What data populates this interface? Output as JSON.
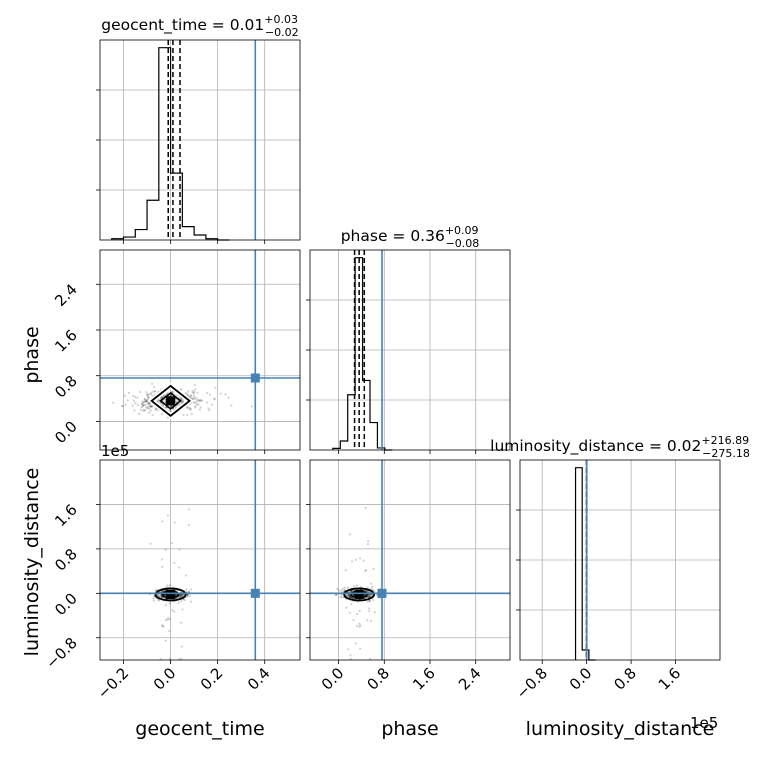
{
  "parameters": [
    "geocent_time",
    "phase",
    "luminosity_distance"
  ],
  "titles": {
    "geocent_time": {
      "prefix": "geocent_time = 0.01",
      "sup": "+0.03",
      "sub": "−0.02"
    },
    "phase": {
      "prefix": "phase = 0.36",
      "sup": "+0.09",
      "sub": "−0.08"
    },
    "luminosity_distance": {
      "prefix": "luminosity_distance = 0.02",
      "sup": "+216.89",
      "sub": "−275.18"
    }
  },
  "offset_text": "1e5",
  "colors": {
    "truth": "#4682b4",
    "grid": "#b0b0b0",
    "samples": "#000000"
  },
  "chart_data": {
    "type": "corner",
    "axes": {
      "geocent_time": {
        "range": [
          -0.3,
          0.55
        ],
        "ticks": [
          -0.2,
          0.0,
          0.2,
          0.4
        ],
        "tick_labels": [
          "−0.2",
          "0.0",
          "0.2",
          "0.4"
        ],
        "label": "geocent_time"
      },
      "phase": {
        "range": [
          -0.5,
          3.0
        ],
        "ticks": [
          0.0,
          0.8,
          1.6,
          2.4
        ],
        "tick_labels": [
          "0.0",
          "0.8",
          "1.6",
          "2.4"
        ],
        "label": "phase"
      },
      "luminosity_distance": {
        "range": [
          -120000,
          240000
        ],
        "ticks": [
          -80000,
          0,
          80000,
          160000
        ],
        "tick_labels": [
          "−0.8",
          "0.0",
          "0.8",
          "1.6"
        ],
        "label": "luminosity_distance",
        "scale_note": "1e5"
      }
    },
    "truths": {
      "geocent_time": 0.36,
      "phase": 0.76,
      "luminosity_distance": 0
    },
    "quantiles": {
      "geocent_time": [
        -0.01,
        0.01,
        0.04
      ],
      "phase": [
        0.28,
        0.36,
        0.45
      ],
      "luminosity_distance": [
        -275.16,
        0.02,
        216.91
      ]
    },
    "histograms": {
      "geocent_time": {
        "bin_edges": [
          -0.25,
          -0.2,
          -0.15,
          -0.1,
          -0.05,
          0.0,
          0.05,
          0.1,
          0.15,
          0.2,
          0.25
        ],
        "counts": [
          0.3,
          0.7,
          2.5,
          9.5,
          46,
          16,
          3.2,
          1.2,
          0.3,
          0.0
        ]
      },
      "phase": {
        "bin_edges": [
          -0.1,
          0.03,
          0.16,
          0.29,
          0.42,
          0.55,
          0.68,
          0.81,
          0.94
        ],
        "counts": [
          0.4,
          2.2,
          13.5,
          47,
          17,
          6.7,
          0.5,
          0.0
        ]
      },
      "luminosity_distance": {
        "bin_edges": [
          -20000,
          -8000,
          4000,
          16000
        ],
        "counts": [
          48,
          2.5,
          0.0
        ]
      }
    },
    "pair_centers": {
      "geocent_time_phase": {
        "x": 0.0,
        "y": 0.36
      },
      "geocent_time_luminosity_distance": {
        "x": 0.0,
        "y": -2000
      },
      "phase_luminosity_distance": {
        "x": 0.36,
        "y": -2000
      }
    }
  }
}
